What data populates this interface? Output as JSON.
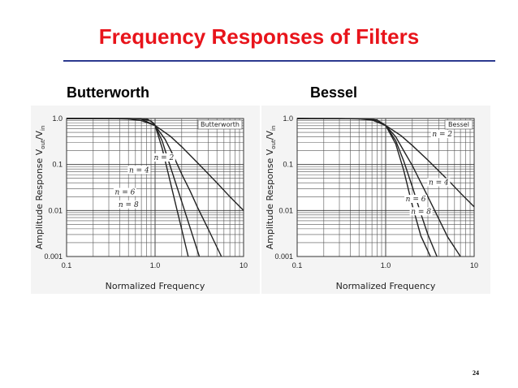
{
  "slide": {
    "title": "Frequency Responses of Filters",
    "page_number": "24",
    "title_color": "#e8141b",
    "rule_color": "#2b3a8f"
  },
  "chart_data": [
    {
      "type": "line",
      "label": "Butterworth",
      "legend": "Butterworth",
      "xscale": "log",
      "yscale": "log",
      "xlim": [
        0.1,
        10
      ],
      "ylim": [
        0.001,
        1.0
      ],
      "xticks": [
        "0.1",
        "1.0",
        "10"
      ],
      "yticks": [
        "1.0",
        "0.1",
        "0.01",
        "0.001"
      ],
      "xlabel": "Normalized Frequency",
      "ylabel": "Amplitude Response V",
      "ylabel_sub1": "out",
      "ylabel_mid": "/V",
      "ylabel_sub2": "in",
      "grid": true,
      "legend_position": "top-right",
      "series": [
        {
          "name": "n = 2",
          "order": 2,
          "x": [
            0.1,
            0.3,
            0.5,
            0.7,
            1.0,
            1.5,
            2,
            3,
            5,
            7,
            10
          ],
          "y": [
            1.0,
            0.996,
            0.97,
            0.9,
            0.707,
            0.406,
            0.243,
            0.11,
            0.04,
            0.02,
            0.01
          ]
        },
        {
          "name": "n = 4",
          "order": 4,
          "x": [
            0.1,
            0.5,
            0.7,
            1.0,
            1.3,
            1.6,
            2,
            2.5,
            3,
            4,
            5.62
          ],
          "y": [
            1.0,
            0.998,
            0.97,
            0.707,
            0.35,
            0.16,
            0.062,
            0.026,
            0.012,
            0.0039,
            0.001
          ]
        },
        {
          "name": "n = 6",
          "order": 6,
          "x": [
            0.1,
            0.7,
            0.9,
            1.0,
            1.2,
            1.5,
            2,
            2.5,
            3.16
          ],
          "y": [
            1.0,
            0.994,
            0.88,
            0.707,
            0.33,
            0.086,
            0.0156,
            0.0041,
            0.001
          ]
        },
        {
          "name": "n = 8",
          "order": 8,
          "x": [
            0.1,
            0.8,
            0.95,
            1.0,
            1.2,
            1.4,
            1.7,
            2,
            2.37
          ],
          "y": [
            1.0,
            0.992,
            0.81,
            0.707,
            0.23,
            0.067,
            0.0142,
            0.0039,
            0.001
          ]
        }
      ],
      "annotations": [
        "n = 2",
        "n = 4",
        "n = 6",
        "n = 8"
      ]
    },
    {
      "type": "line",
      "label": "Bessel",
      "legend": "Bessel",
      "xscale": "log",
      "yscale": "log",
      "xlim": [
        0.1,
        10
      ],
      "ylim": [
        0.001,
        1.0
      ],
      "xticks": [
        "0.1",
        "1.0",
        "10"
      ],
      "yticks": [
        "1.0",
        "0.1",
        "0.01",
        "0.001"
      ],
      "xlabel": "Normalized Frequency",
      "ylabel": "Amplitude Response V",
      "ylabel_sub1": "out",
      "ylabel_mid": "/V",
      "ylabel_sub2": "in",
      "grid": true,
      "legend_position": "top-right",
      "series": [
        {
          "name": "n = 2",
          "order": 2,
          "x": [
            0.1,
            0.3,
            0.5,
            0.7,
            1.0,
            1.5,
            2,
            3,
            5,
            7,
            10
          ],
          "y": [
            1.0,
            0.996,
            0.98,
            0.93,
            0.707,
            0.42,
            0.26,
            0.125,
            0.047,
            0.024,
            0.012
          ]
        },
        {
          "name": "n = 4",
          "order": 4,
          "x": [
            0.1,
            0.5,
            0.7,
            1.0,
            1.3,
            1.6,
            2,
            3,
            4,
            5,
            7
          ],
          "y": [
            1.0,
            0.99,
            0.95,
            0.707,
            0.4,
            0.2,
            0.095,
            0.02,
            0.0065,
            0.0027,
            0.001
          ]
        },
        {
          "name": "n = 6",
          "order": 6,
          "x": [
            0.1,
            0.6,
            0.8,
            1.0,
            1.3,
            1.6,
            2,
            2.5,
            3,
            3.8
          ],
          "y": [
            1.0,
            0.99,
            0.93,
            0.707,
            0.33,
            0.12,
            0.033,
            0.0085,
            0.003,
            0.001
          ]
        },
        {
          "name": "n = 8",
          "order": 8,
          "x": [
            0.1,
            0.6,
            0.8,
            1.0,
            1.3,
            1.6,
            2,
            2.5,
            3.2
          ],
          "y": [
            1.0,
            0.99,
            0.92,
            0.707,
            0.28,
            0.075,
            0.013,
            0.0028,
            0.001
          ]
        }
      ],
      "annotations": [
        "n = 2",
        "n = 4",
        "n = 6",
        "n = 8"
      ]
    }
  ]
}
